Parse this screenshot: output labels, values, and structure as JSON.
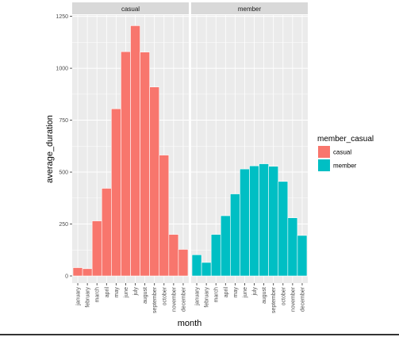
{
  "chart_data": {
    "type": "bar",
    "xlabel": "month",
    "ylabel": "average_duration",
    "ylim": [
      0,
      1250
    ],
    "yticks": [
      0,
      250,
      500,
      750,
      1000,
      1250
    ],
    "ytick_labels": [
      "0",
      "250",
      "500",
      "750",
      "1000",
      "1250"
    ],
    "grid": true,
    "legend": {
      "title": "member_casual",
      "position": "right"
    },
    "categories": [
      "january",
      "february",
      "march",
      "april",
      "may",
      "june",
      "july",
      "august",
      "september",
      "october",
      "november",
      "december"
    ],
    "series": [
      {
        "name": "casual",
        "color": "#F8766D",
        "values": [
          40,
          35,
          265,
          422,
          805,
          1080,
          1205,
          1078,
          910,
          582,
          200,
          128
        ]
      },
      {
        "name": "member",
        "color": "#00BFC4",
        "values": [
          102,
          65,
          200,
          290,
          395,
          515,
          530,
          540,
          528,
          455,
          280,
          195
        ]
      }
    ]
  },
  "colors": {
    "panel_bg": "#EBEBEB",
    "strip_bg": "#D9D9D9",
    "grid": "#FFFFFF"
  }
}
